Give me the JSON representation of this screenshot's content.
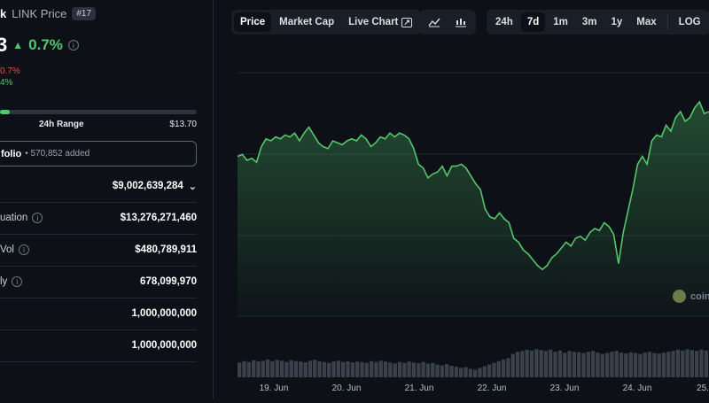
{
  "coin": {
    "title": "LINK Price",
    "title_prefix": "k",
    "rank": "#17",
    "price_fragment": "3",
    "change_24h": "0.7%",
    "sub_change_1": "0.7%",
    "sub_change_2": "4%",
    "range_label": "24h Range",
    "range_high": "$13.70",
    "range_position": 0.05
  },
  "portfolio": {
    "label": "folio",
    "added": "• 570,852 added"
  },
  "stats": [
    {
      "label": "",
      "value": "$9,002,639,284",
      "has_info": false,
      "has_chevron": true
    },
    {
      "label": "uation",
      "value": "$13,276,271,460",
      "has_info": true,
      "has_chevron": false
    },
    {
      "label": "Vol",
      "value": "$480,789,911",
      "has_info": true,
      "has_chevron": false
    },
    {
      "label": "ly",
      "value": "678,099,970",
      "has_info": true,
      "has_chevron": false
    },
    {
      "label": "",
      "value": "1,000,000,000",
      "has_info": false,
      "has_chevron": false
    },
    {
      "label": "",
      "value": "1,000,000,000",
      "has_info": false,
      "has_chevron": false
    }
  ],
  "toolbar": {
    "view_tabs": [
      "Price",
      "Market Cap",
      "Live Chart"
    ],
    "chart_type_icons": [
      "line-chart-icon",
      "candlestick-icon"
    ],
    "ranges": [
      "24h",
      "7d",
      "1m",
      "3m",
      "1y",
      "Max",
      "LOG"
    ],
    "active_view": "Price",
    "active_range": "7d"
  },
  "chart_data": {
    "type": "area",
    "x_ticks": [
      "19. Jun",
      "20. Jun",
      "21. Jun",
      "22. Jun",
      "23. Jun",
      "24. Jun",
      "25."
    ],
    "values": [
      0.72,
      0.73,
      0.7,
      0.71,
      0.69,
      0.77,
      0.81,
      0.8,
      0.82,
      0.81,
      0.83,
      0.82,
      0.84,
      0.8,
      0.84,
      0.87,
      0.83,
      0.79,
      0.77,
      0.76,
      0.8,
      0.79,
      0.78,
      0.8,
      0.81,
      0.8,
      0.83,
      0.81,
      0.77,
      0.79,
      0.82,
      0.81,
      0.84,
      0.82,
      0.84,
      0.83,
      0.81,
      0.76,
      0.68,
      0.66,
      0.61,
      0.63,
      0.64,
      0.67,
      0.62,
      0.67,
      0.67,
      0.68,
      0.66,
      0.62,
      0.58,
      0.55,
      0.45,
      0.41,
      0.4,
      0.43,
      0.4,
      0.38,
      0.3,
      0.28,
      0.24,
      0.22,
      0.19,
      0.16,
      0.14,
      0.16,
      0.2,
      0.22,
      0.25,
      0.28,
      0.26,
      0.3,
      0.31,
      0.29,
      0.33,
      0.35,
      0.34,
      0.38,
      0.36,
      0.32,
      0.17,
      0.33,
      0.44,
      0.55,
      0.68,
      0.72,
      0.68,
      0.8,
      0.83,
      0.82,
      0.88,
      0.85,
      0.92,
      0.95,
      0.9,
      0.92,
      0.97,
      1.0,
      0.94,
      0.95
    ],
    "volume": [
      0.35,
      0.38,
      0.36,
      0.4,
      0.37,
      0.39,
      0.42,
      0.38,
      0.41,
      0.39,
      0.36,
      0.4,
      0.38,
      0.37,
      0.35,
      0.39,
      0.41,
      0.38,
      0.36,
      0.34,
      0.37,
      0.39,
      0.36,
      0.38,
      0.35,
      0.37,
      0.36,
      0.34,
      0.38,
      0.36,
      0.39,
      0.37,
      0.35,
      0.33,
      0.36,
      0.34,
      0.37,
      0.35,
      0.33,
      0.36,
      0.32,
      0.34,
      0.3,
      0.28,
      0.31,
      0.27,
      0.25,
      0.22,
      0.24,
      0.2,
      0.18,
      0.22,
      0.26,
      0.3,
      0.34,
      0.38,
      0.42,
      0.45,
      0.55,
      0.6,
      0.62,
      0.65,
      0.63,
      0.66,
      0.64,
      0.62,
      0.65,
      0.6,
      0.63,
      0.58,
      0.62,
      0.6,
      0.59,
      0.57,
      0.6,
      0.62,
      0.58,
      0.55,
      0.57,
      0.6,
      0.62,
      0.58,
      0.56,
      0.59,
      0.57,
      0.55,
      0.58,
      0.6,
      0.57,
      0.56,
      0.58,
      0.6,
      0.62,
      0.65,
      0.63,
      0.66,
      0.64,
      0.62,
      0.65,
      0.63
    ],
    "grid": true
  },
  "watermark": {
    "text": "coin"
  },
  "colors": {
    "up": "#52c76b",
    "down": "#e0504a",
    "bg": "#0d1117",
    "panel": "#1a1f27"
  }
}
